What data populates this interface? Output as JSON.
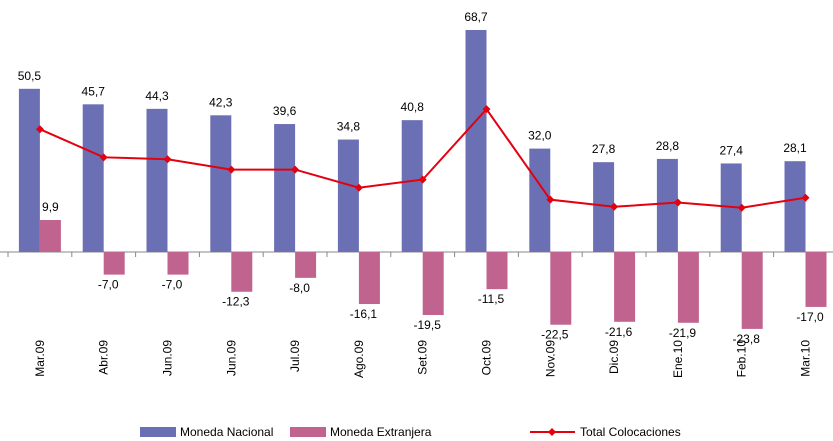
{
  "chart_data": {
    "type": "bar",
    "categories": [
      "Mar.09",
      "Abr.09",
      "Jun.09",
      "Jun.09",
      "Jul.09",
      "Ago.09",
      "Set.09",
      "Oct.09",
      "Nov.09",
      "Dic.09",
      "Ene.10",
      "Feb.10",
      "Mar.10"
    ],
    "series": [
      {
        "name": "Moneda Nacional",
        "color": "#6b70b5",
        "type": "bar",
        "values": [
          50.5,
          45.7,
          44.3,
          42.3,
          39.6,
          34.8,
          40.8,
          68.7,
          32.0,
          27.8,
          28.8,
          27.4,
          28.1
        ],
        "value_labels": [
          "50,5",
          "45,7",
          "44,3",
          "42,3",
          "39,6",
          "34,8",
          "40,8",
          "68,7",
          "32,0",
          "27,8",
          "28,8",
          "27,4",
          "28,1"
        ]
      },
      {
        "name": "Moneda Extranjera",
        "color": "#c0638f",
        "type": "bar",
        "values": [
          9.9,
          -7.0,
          -7.0,
          -12.3,
          -8.0,
          -16.1,
          -19.5,
          -11.5,
          -22.5,
          -21.6,
          -21.9,
          -23.8,
          -17.0
        ],
        "value_labels": [
          "9,9",
          "-7,0",
          "-7,0",
          "-12,3",
          "-8,0",
          "-16,1",
          "-19,5",
          "-11,5",
          "-22,5",
          "-21,6",
          "-21,9",
          "-23,8",
          "-17,0"
        ]
      },
      {
        "name": "Total Colocaciones",
        "color": "#e3000f",
        "type": "line",
        "values": [
          38.0,
          29.3,
          28.7,
          25.5,
          25.5,
          19.9,
          22.4,
          44.2,
          16.2,
          14.0,
          15.3,
          13.7,
          16.8
        ]
      }
    ]
  }
}
